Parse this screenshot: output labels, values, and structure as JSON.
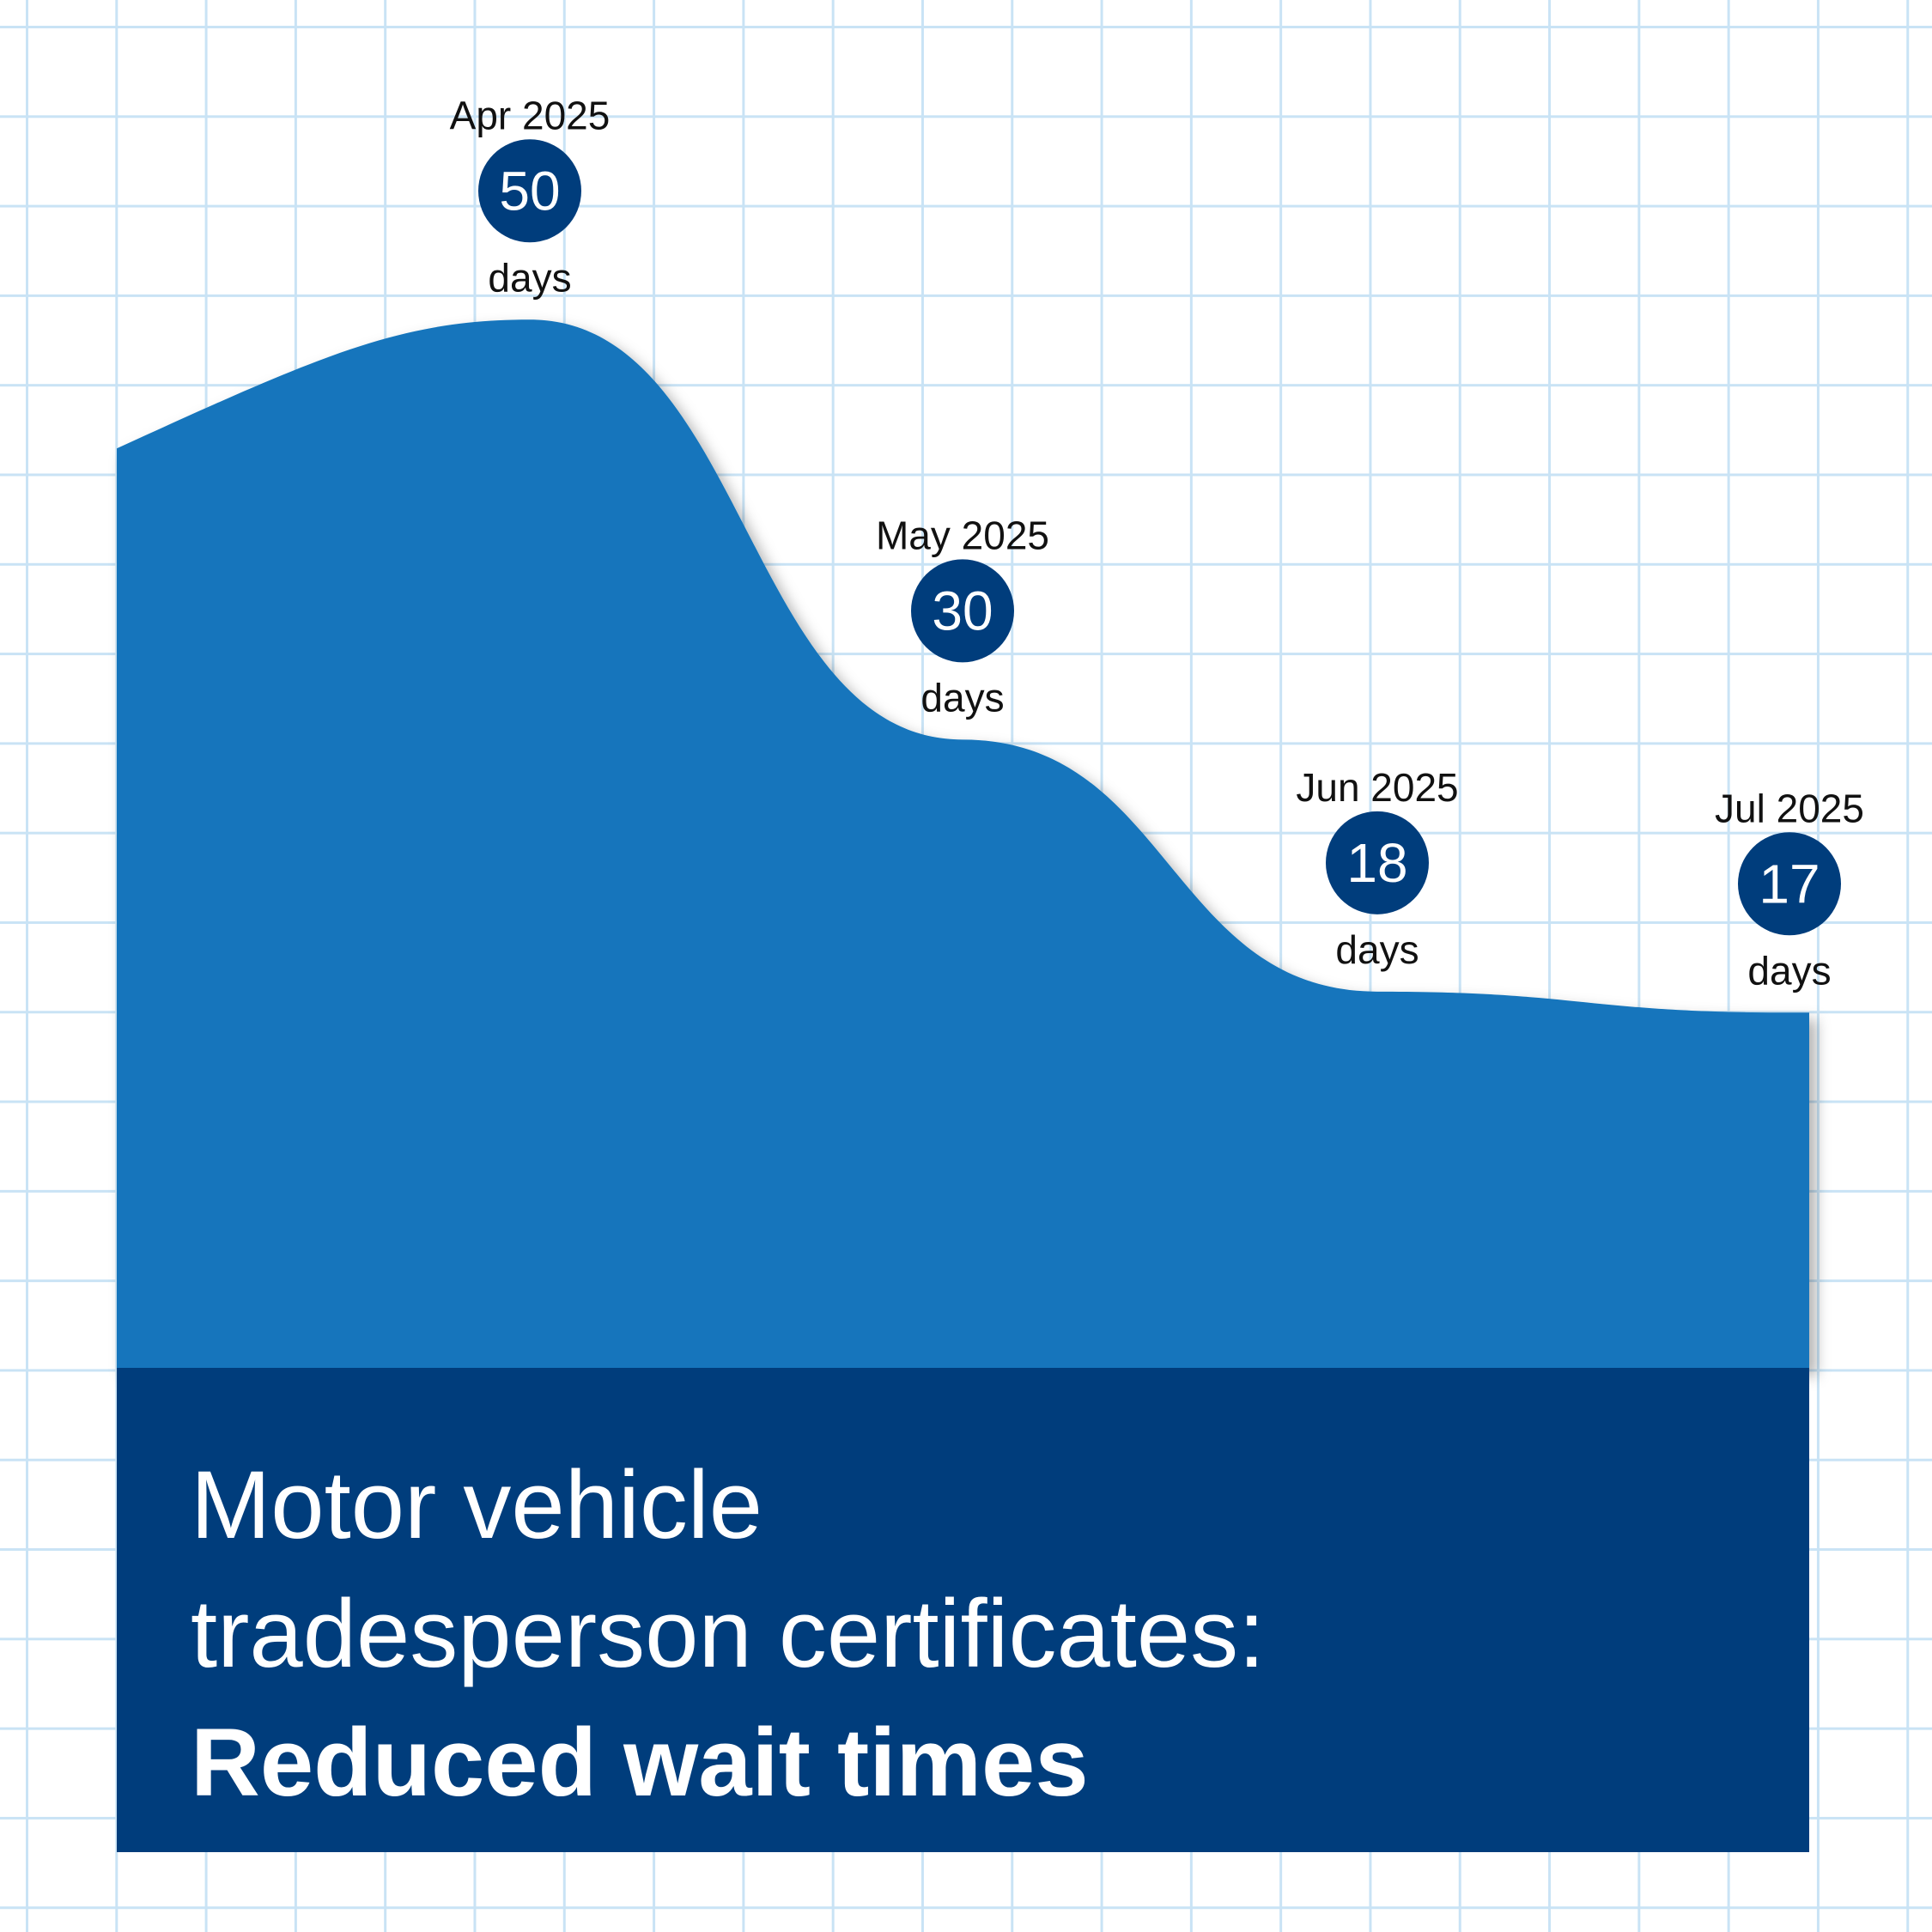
{
  "chart_data": {
    "type": "area",
    "title": "Motor vehicle\ntradesperson certificates:",
    "subtitle": "Reduced wait times",
    "categories": [
      "Apr 2025",
      "May 2025",
      "Jun 2025",
      "Jul 2025"
    ],
    "values": [
      50,
      30,
      18,
      17
    ],
    "unit": "days",
    "color": "#1275bc",
    "label_color": "#003d7c",
    "ylim": [
      0,
      55
    ]
  }
}
